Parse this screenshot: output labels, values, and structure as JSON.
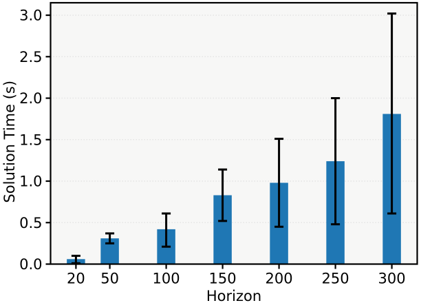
{
  "figure": {
    "kind": "matplotlib-style bar chart with error bars",
    "background": "#ffffff"
  },
  "chart_data": {
    "type": "bar",
    "title": "",
    "xlabel": "Horizon",
    "ylabel": "Solution Time (s)",
    "categories": [
      20,
      50,
      100,
      150,
      200,
      250,
      300
    ],
    "values": [
      0.06,
      0.31,
      0.42,
      0.83,
      0.98,
      1.24,
      1.81
    ],
    "error_plus": [
      0.04,
      0.06,
      0.19,
      0.31,
      0.53,
      0.76,
      1.21
    ],
    "error_minus": [
      0.05,
      0.06,
      0.21,
      0.31,
      0.53,
      0.76,
      1.2
    ],
    "y_ticks": [
      0.0,
      0.5,
      1.0,
      1.5,
      2.0,
      2.5,
      3.0
    ],
    "y_tick_labels": [
      "0.0",
      "0.5",
      "1.0",
      "1.5",
      "2.0",
      "2.5",
      "3.0"
    ],
    "x_tick_labels": [
      "20",
      "50",
      "100",
      "150",
      "200",
      "250",
      "300"
    ],
    "ylim": [
      0,
      3.15
    ],
    "xlim": [
      -2.5,
      322.5
    ],
    "grid": "horizontal-dotted",
    "legend_position": "none",
    "colors": {
      "bar_fill": "#1f77b4",
      "error_bar": "#000000",
      "plot_background": "#f7f7f6",
      "grid_line": "#e4e4e4",
      "spine": "#000000",
      "tick_label": "#000000"
    }
  }
}
